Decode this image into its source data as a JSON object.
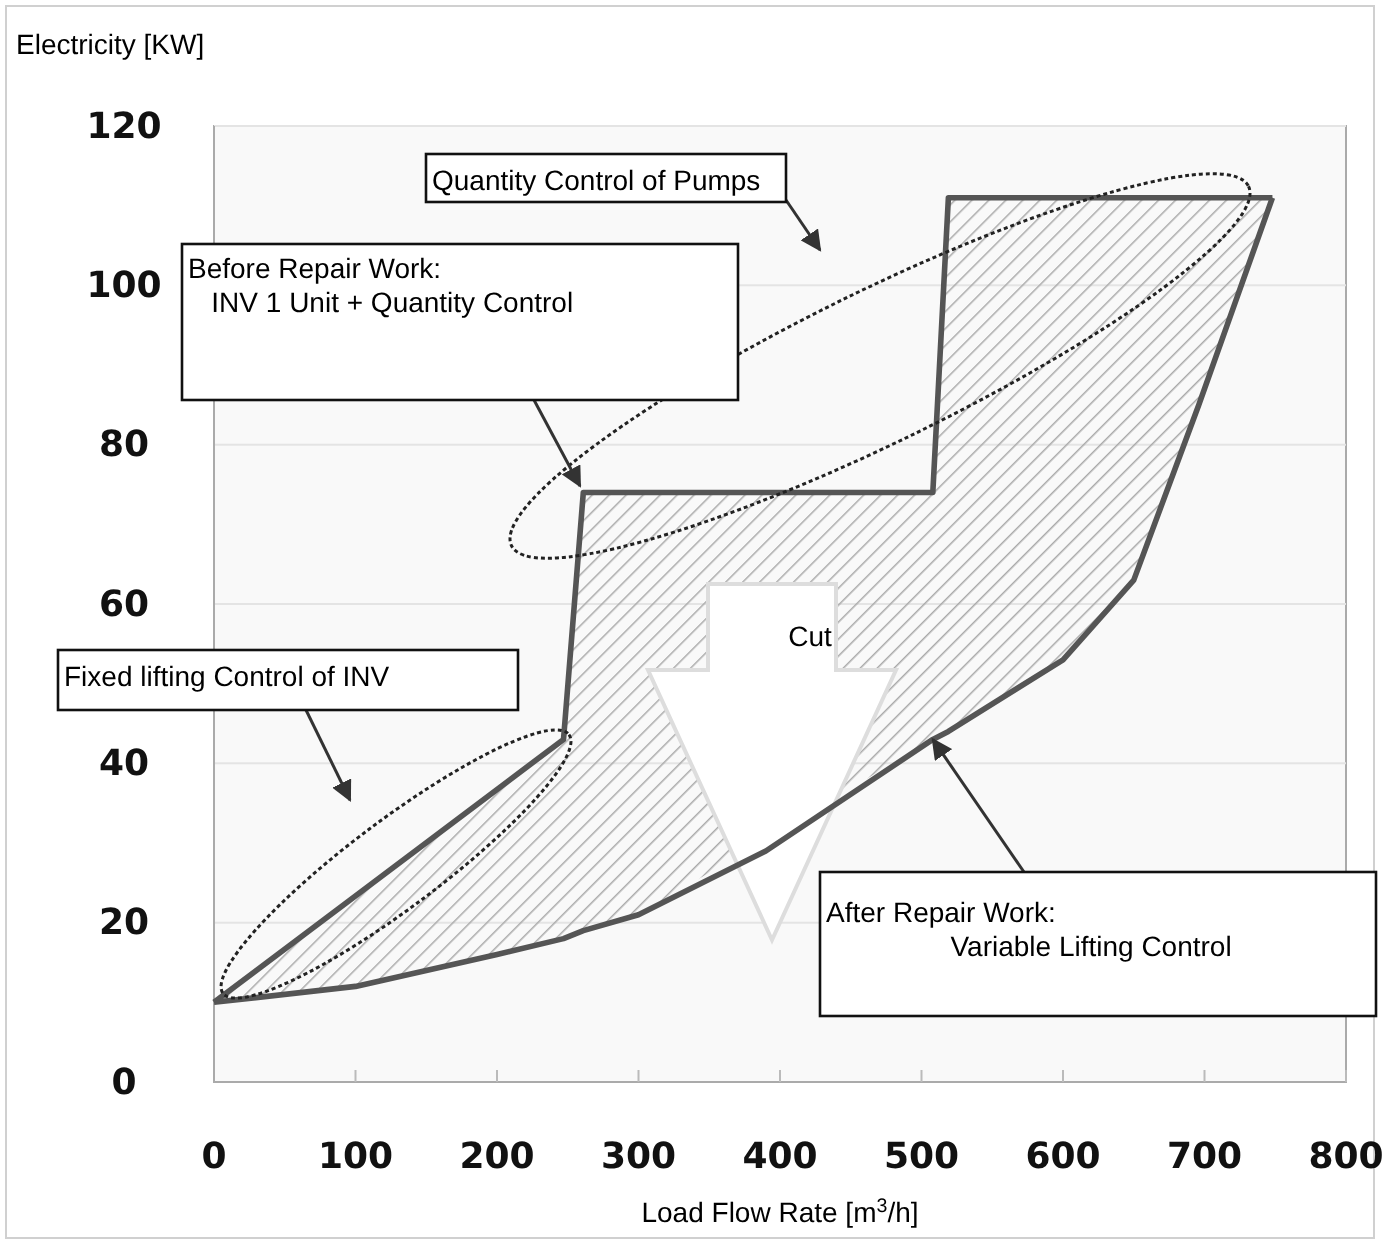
{
  "chart_data": {
    "type": "line",
    "xlabel": "Load Flow Rate [m$^{3}$/h]",
    "ylabel": "Electricity [KW]",
    "xlim": [
      0,
      800
    ],
    "xticks": [
      0,
      100,
      200,
      300,
      400,
      500,
      600,
      700,
      800
    ],
    "ylim": [
      0,
      120
    ],
    "yticks": [
      0,
      20,
      40,
      60,
      80,
      100,
      120
    ],
    "grid": "y",
    "series": [
      {
        "color": "#555555",
        "x": [
          0,
          247,
          261,
          508,
          519,
          748
        ],
        "values": [
          10,
          43,
          74,
          74,
          111,
          111
        ]
      },
      {
        "color": "#555555",
        "x": [
          0,
          100,
          200,
          247,
          261,
          300,
          390,
          508,
          519,
          600,
          650,
          696,
          748
        ],
        "values": [
          10,
          12,
          16,
          18,
          19,
          21,
          29,
          43,
          44,
          53,
          63,
          85,
          111
        ],
        "lower": [
          10,
          12,
          16,
          18,
          19,
          21,
          null,
          43,
          44,
          53,
          63,
          85,
          111
        ],
        "upper": [
          10,
          23,
          37,
          43,
          74,
          74,
          null,
          74,
          111,
          111,
          111,
          111,
          111
        ]
      }
    ],
    "annotations": [
      "Quantity Control of Pumps",
      "Before Repair Work:\n   INV 1 Unit + Quantity Control",
      "Fixed lifting Control of INV",
      {
        "text": "After Repair Work:\n                Variable Lifting Control",
        "x": 508,
        "y": 43
      },
      "Cut"
    ]
  }
}
